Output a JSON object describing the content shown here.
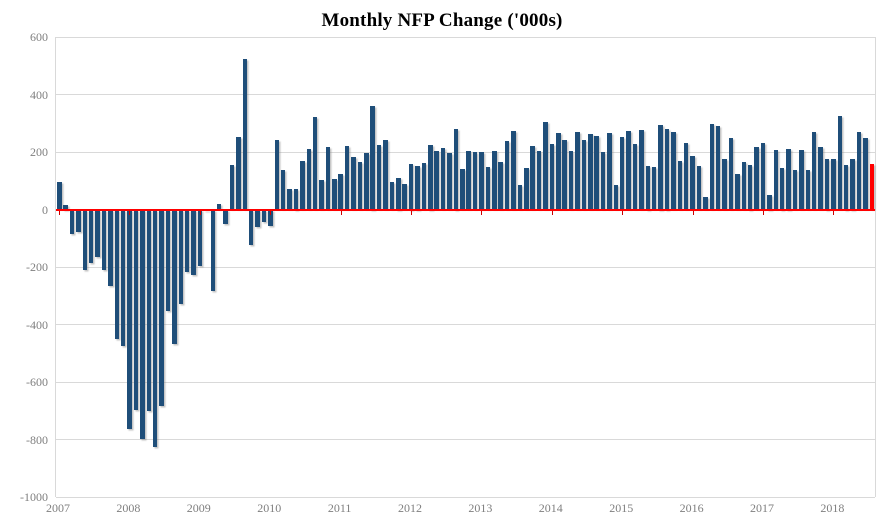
{
  "chart_data": {
    "type": "bar",
    "title": "Monthly NFP Change ('000s)",
    "subtitle": "",
    "start_month": "2007-12",
    "end_month": "2018-07",
    "unit": "thousands of jobs",
    "values": [
      97,
      15,
      -86,
      -78,
      -210,
      -185,
      -165,
      -209,
      -266,
      -452,
      -474,
      -765,
      -697,
      -798,
      -701,
      -826,
      -684,
      -354,
      -467,
      -327,
      -216,
      -227,
      -198,
      -6,
      -283,
      18,
      -50,
      156,
      251,
      522,
      -122,
      -61,
      -42,
      -57,
      241,
      137,
      71,
      70,
      168,
      212,
      322,
      102,
      217,
      106,
      122,
      221,
      183,
      164,
      196,
      360,
      226,
      243,
      96,
      110,
      88,
      160,
      150,
      161,
      225,
      203,
      214,
      197,
      280,
      141,
      203,
      199,
      201,
      149,
      202,
      164,
      237,
      274,
      84,
      144,
      222,
      203,
      304,
      229,
      267,
      243,
      203,
      271,
      243,
      261,
      256,
      201,
      266,
      84,
      251,
      273,
      228,
      277,
      150,
      149,
      295,
      280,
      271,
      168,
      233,
      186,
      153,
      43,
      297,
      291,
      176,
      249,
      124,
      164,
      155,
      216,
      232,
      50,
      207,
      145,
      210,
      138,
      208,
      136,
      271,
      216,
      175,
      176,
      324,
      155,
      175,
      268,
      248,
      157
    ],
    "x_tick_labels": [
      "2007",
      "2008",
      "2009",
      "2010",
      "2011",
      "2012",
      "2013",
      "2014",
      "2015",
      "2016",
      "2017",
      "2018"
    ],
    "y_ticks": [
      600,
      400,
      200,
      0,
      -200,
      -400,
      -600,
      -800,
      -1000
    ],
    "ylim": [
      -1000,
      600
    ],
    "grid": "horizontal",
    "legend": "none",
    "bar_color": "#1f4e79",
    "last_bar_color": "#ff0000",
    "zero_line_color": "#ff0000",
    "gridline_color": "#d9d9d9",
    "axis_text_color": "#7f7f7f",
    "highlight_note": "final bar (most recent month) drawn in red"
  }
}
